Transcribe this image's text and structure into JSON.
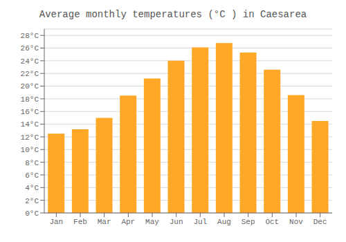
{
  "chart_data": {
    "type": "bar",
    "title": "Average monthly temperatures (°C ) in Caesarea",
    "categories": [
      "Jan",
      "Feb",
      "Mar",
      "Apr",
      "May",
      "Jun",
      "Jul",
      "Aug",
      "Sep",
      "Oct",
      "Nov",
      "Dec"
    ],
    "values": [
      12.5,
      13.2,
      15.0,
      18.5,
      21.2,
      24.0,
      26.1,
      26.8,
      25.3,
      22.6,
      18.6,
      14.5
    ],
    "color": "#FFA726",
    "ylim": [
      0,
      29
    ],
    "yticks": [
      {
        "value": 0,
        "label": "0°C"
      },
      {
        "value": 2,
        "label": "2°C"
      },
      {
        "value": 4,
        "label": "4°C"
      },
      {
        "value": 6,
        "label": "6°C"
      },
      {
        "value": 8,
        "label": "8°C"
      },
      {
        "value": 10,
        "label": "10°C"
      },
      {
        "value": 12,
        "label": "12°C"
      },
      {
        "value": 14,
        "label": "14°C"
      },
      {
        "value": 16,
        "label": "16°C"
      },
      {
        "value": 18,
        "label": "18°C"
      },
      {
        "value": 20,
        "label": "20°C"
      },
      {
        "value": 22,
        "label": "22°C"
      },
      {
        "value": 24,
        "label": "24°C"
      },
      {
        "value": 26,
        "label": "26°C"
      },
      {
        "value": 28,
        "label": "28°C"
      }
    ],
    "grid": true
  }
}
